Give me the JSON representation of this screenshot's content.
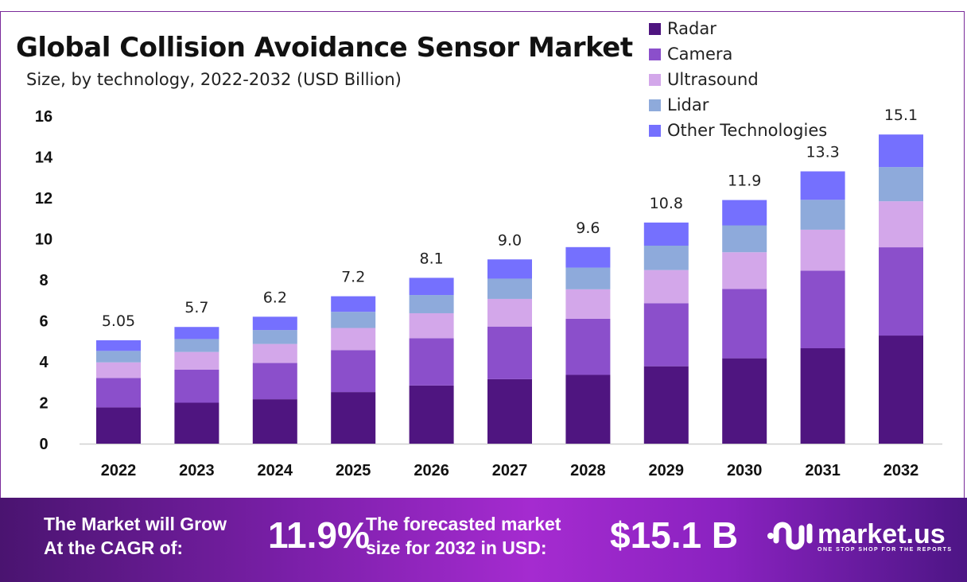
{
  "chart_data": {
    "type": "bar",
    "stacked": true,
    "title": "Global Collision Avoidance Sensor Market",
    "subtitle": "Size, by technology, 2022-2032 (USD Billion)",
    "xlabel": "",
    "ylabel": "",
    "ylim": [
      0,
      16
    ],
    "yticks": [
      "0",
      "2",
      "4",
      "6",
      "8",
      "10",
      "12",
      "14",
      "16"
    ],
    "categories": [
      "2022",
      "2023",
      "2024",
      "2025",
      "2026",
      "2027",
      "2028",
      "2029",
      "2030",
      "2031",
      "2032"
    ],
    "totals": [
      "5.05",
      "5.7",
      "6.2",
      "7.2",
      "8.1",
      "9.0",
      "9.6",
      "10.8",
      "11.9",
      "13.3",
      "15.1"
    ],
    "legend_position": "top-right",
    "series": [
      {
        "name": "Radar",
        "color": "#4f1580",
        "values": [
          1.77,
          2.0,
          2.17,
          2.52,
          2.84,
          3.15,
          3.36,
          3.78,
          4.17,
          4.66,
          5.28
        ]
      },
      {
        "name": "Camera",
        "color": "#8b4fcb",
        "values": [
          1.44,
          1.62,
          1.77,
          2.05,
          2.31,
          2.57,
          2.74,
          3.08,
          3.39,
          3.79,
          4.31
        ]
      },
      {
        "name": "Ultrasound",
        "color": "#d3a7ea",
        "values": [
          0.76,
          0.86,
          0.93,
          1.08,
          1.22,
          1.35,
          1.44,
          1.62,
          1.79,
          2.0,
          2.25
        ]
      },
      {
        "name": "Lidar",
        "color": "#8eaadb",
        "values": [
          0.56,
          0.63,
          0.68,
          0.79,
          0.89,
          0.99,
          1.06,
          1.19,
          1.31,
          1.46,
          1.67
        ]
      },
      {
        "name": "Other Technologies",
        "color": "#7570fe",
        "values": [
          0.52,
          0.59,
          0.65,
          0.76,
          0.84,
          0.94,
          1.0,
          1.13,
          1.24,
          1.39,
          1.59
        ]
      }
    ]
  },
  "banner": {
    "grow_label_1": "The Market will Grow",
    "grow_label_2": "At the CAGR of:",
    "cagr": "11.9%",
    "forecast_label_1": "The forecasted market",
    "forecast_label_2": "size for 2032 in USD:",
    "forecast_value": "$15.1 B",
    "logo_name": "market.us",
    "logo_tagline": "ONE STOP SHOP FOR THE REPORTS"
  }
}
